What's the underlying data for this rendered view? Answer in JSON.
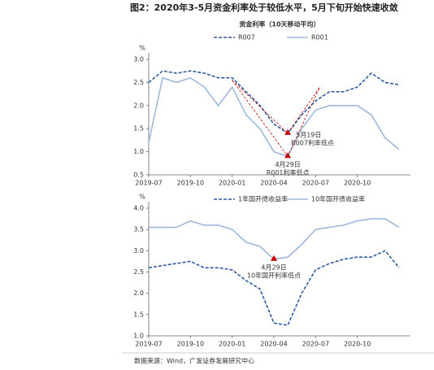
{
  "title": "图2：2020年3-5月资金利率处于较低水平，5月下旬开始快速收敛",
  "source": "数据来源：Wind，广发证券发展研究中心",
  "chart_data": [
    {
      "type": "line",
      "title": "资金利率（10天移动平均）",
      "y_unit": "%",
      "x": [
        "2019-07",
        "2019-08",
        "2019-09",
        "2019-10",
        "2019-11",
        "2019-12",
        "2020-01",
        "2020-02",
        "2020-03",
        "2020-04",
        "2020-05",
        "2020-06",
        "2020-07",
        "2020-08",
        "2020-09",
        "2020-10",
        "2020-11",
        "2020-12",
        "2021-01"
      ],
      "xticks": [
        "2019-07",
        "2019-10",
        "2020-01",
        "2020-04",
        "2020-07",
        "2020-10"
      ],
      "ylim": [
        0.5,
        3.0
      ],
      "yticks": [
        0.5,
        {
          "value": 1,
          "label": "1.0"
        },
        1.5,
        {
          "value": 2,
          "label": "2.0"
        },
        2.5,
        {
          "value": 3,
          "label": "3.0"
        }
      ],
      "series": [
        {
          "name": "R007",
          "color": "#2e5c9e",
          "dashed": true,
          "values": [
            2.5,
            2.75,
            2.7,
            2.75,
            2.7,
            2.6,
            2.6,
            2.3,
            2.0,
            1.6,
            1.4,
            1.8,
            2.1,
            2.3,
            2.3,
            2.4,
            2.7,
            2.5,
            2.45
          ]
        },
        {
          "name": "R001",
          "color": "#9db8dc",
          "dashed": false,
          "values": [
            1.2,
            2.6,
            2.5,
            2.6,
            2.4,
            2.0,
            2.4,
            1.8,
            1.5,
            1.0,
            0.9,
            1.5,
            1.9,
            2.0,
            2.0,
            2.0,
            1.8,
            1.3,
            1.05
          ]
        }
      ],
      "annotations": [
        {
          "series": 0,
          "date": "5月19日",
          "text": "R007利率低点"
        },
        {
          "series": 1,
          "date": "4月29日",
          "text": "R001利率低点"
        }
      ]
    },
    {
      "type": "line",
      "y_unit": "%",
      "x": [
        "2019-07",
        "2019-08",
        "2019-09",
        "2019-10",
        "2019-11",
        "2019-12",
        "2020-01",
        "2020-02",
        "2020-03",
        "2020-04",
        "2020-05",
        "2020-06",
        "2020-07",
        "2020-08",
        "2020-09",
        "2020-10",
        "2020-11",
        "2020-12",
        "2021-01"
      ],
      "xticks": [
        "2019-07",
        "2019-10",
        "2020-01",
        "2020-04",
        "2020-07",
        "2020-10"
      ],
      "ylim": [
        1.0,
        4.0
      ],
      "yticks": [
        {
          "value": 1,
          "label": "1.0"
        },
        1.5,
        {
          "value": 2,
          "label": "2.0"
        },
        2.5,
        {
          "value": 3,
          "label": "3.0"
        },
        3.5,
        {
          "value": 4,
          "label": "4.0"
        }
      ],
      "series": [
        {
          "name": "1年国开债收益率",
          "color": "#2e5c9e",
          "dashed": true,
          "values": [
            2.6,
            2.65,
            2.7,
            2.75,
            2.6,
            2.6,
            2.55,
            2.3,
            2.1,
            1.3,
            1.25,
            2.0,
            2.55,
            2.7,
            2.8,
            2.85,
            2.85,
            3.0,
            2.6
          ]
        },
        {
          "name": "10年国开债收益率",
          "color": "#9db8dc",
          "dashed": false,
          "values": [
            3.55,
            3.55,
            3.55,
            3.7,
            3.6,
            3.6,
            3.5,
            3.2,
            3.1,
            2.8,
            2.85,
            3.15,
            3.5,
            3.55,
            3.6,
            3.7,
            3.75,
            3.75,
            3.55
          ]
        }
      ],
      "annotations": [
        {
          "series": 1,
          "date": "4月29日",
          "text": "10年国开利率低点"
        }
      ]
    }
  ]
}
